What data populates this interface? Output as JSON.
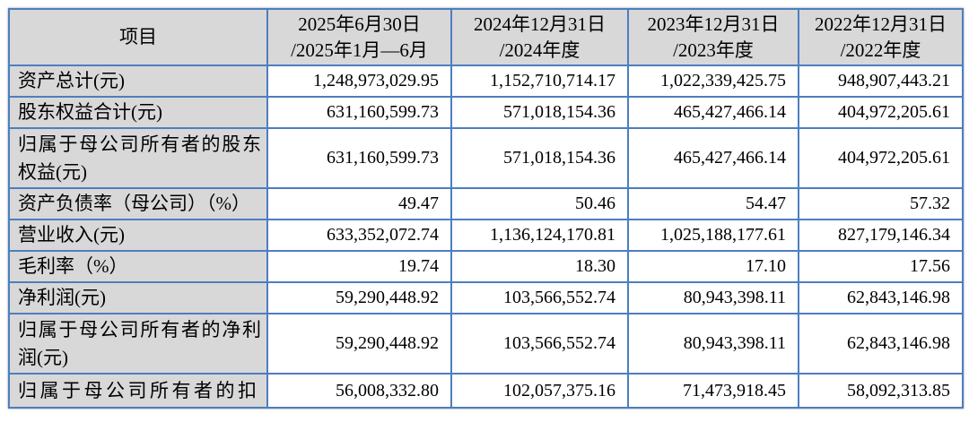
{
  "table": {
    "header": [
      {
        "line1": "项目",
        "line2": ""
      },
      {
        "line1": "2025年6月30日",
        "line2": "/2025年1月—6月"
      },
      {
        "line1": "2024年12月31日",
        "line2": "/2024年度"
      },
      {
        "line1": "2023年12月31日",
        "line2": "/2023年度"
      },
      {
        "line1": "2022年12月31日",
        "line2": "/2022年度"
      }
    ],
    "rows": [
      {
        "label": "资产总计(元)",
        "values": [
          "1,248,973,029.95",
          "1,152,710,714.17",
          "1,022,339,425.75",
          "948,907,443.21"
        ]
      },
      {
        "label": "股东权益合计(元)",
        "values": [
          "631,160,599.73",
          "571,018,154.36",
          "465,427,466.14",
          "404,972,205.61"
        ]
      },
      {
        "label": "归属于母公司所有者的股东权益(元)",
        "tall": true,
        "values": [
          "631,160,599.73",
          "571,018,154.36",
          "465,427,466.14",
          "404,972,205.61"
        ]
      },
      {
        "label": "资产负债率（母公司）（%）",
        "values": [
          "49.47",
          "50.46",
          "54.47",
          "57.32"
        ]
      },
      {
        "label": "营业收入(元)",
        "values": [
          "633,352,072.74",
          "1,136,124,170.81",
          "1,025,188,177.61",
          "827,179,146.34"
        ]
      },
      {
        "label": "毛利率（%）",
        "values": [
          "19.74",
          "18.30",
          "17.10",
          "17.56"
        ]
      },
      {
        "label": "净利润(元)",
        "values": [
          "59,290,448.92",
          "103,566,552.74",
          "80,943,398.11",
          "62,843,146.98"
        ]
      },
      {
        "label": "归属于母公司所有者的净利润(元)",
        "tall": true,
        "values": [
          "59,290,448.92",
          "103,566,552.74",
          "80,943,398.11",
          "62,843,146.98"
        ]
      },
      {
        "label": "归属于母公司所有者的扣",
        "truncated": true,
        "values": [
          "56,008,332.80",
          "102,057,375.16",
          "71,473,918.45",
          "58,092,313.85"
        ]
      }
    ],
    "colors": {
      "border_blue": "#4d7ebf",
      "header_bg": "#d8d8d8",
      "cell_bg": "#ffffff",
      "text": "#000000"
    }
  }
}
